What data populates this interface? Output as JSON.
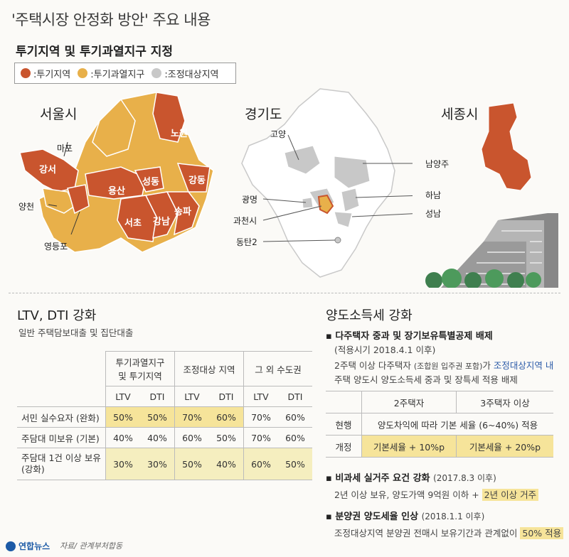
{
  "title": "'주택시장 안정화 방안' 주요 내용",
  "section1": {
    "heading": "투기지역 및 투기과열지구 지정",
    "legend": [
      {
        "label": ":투기지역",
        "color": "#c9552e"
      },
      {
        "label": ":투기과열지구",
        "color": "#e8b04a"
      },
      {
        "label": ":조정대상지역",
        "color": "#c8c8c8"
      }
    ],
    "seoul": {
      "name": "서울시",
      "districts": [
        "마포",
        "노원",
        "강서",
        "성동",
        "강동",
        "용산",
        "양천",
        "송파",
        "강남",
        "서초",
        "영등포"
      ]
    },
    "gyeonggi": {
      "name": "경기도",
      "places": [
        "고양",
        "남양주",
        "하남",
        "광명",
        "성남",
        "과천시",
        "동탄2"
      ]
    },
    "sejong": {
      "name": "세종시"
    }
  },
  "section2": {
    "heading": "LTV, DTI 강화",
    "sub": "일반 주택담보대출 및 집단대출",
    "col_groups": [
      "투기과열지구\n및 투기지역",
      "조정대상 지역",
      "그 외 수도권"
    ],
    "sub_cols": [
      "LTV",
      "DTI",
      "LTV",
      "DTI",
      "LTV",
      "DTI"
    ],
    "rows": [
      {
        "label": "서민 실수요자 (완화)",
        "values": [
          "50%",
          "50%",
          "70%",
          "60%",
          "70%",
          "60%"
        ]
      },
      {
        "label": "주담대 미보유 (기본)",
        "values": [
          "40%",
          "40%",
          "60%",
          "50%",
          "70%",
          "60%"
        ]
      },
      {
        "label": "주담대 1건 이상 보유\n(강화)",
        "values": [
          "30%",
          "30%",
          "50%",
          "40%",
          "60%",
          "50%"
        ]
      }
    ]
  },
  "section3": {
    "heading": "양도소득세 강화",
    "b1": {
      "title": "다주택자 중과 및 장기보유특별공제 배제",
      "date": "(적용시기 2018.4.1 이후)",
      "line1_a": "2주택 이상 다주택자 ",
      "line1_b": "(조합원 입주권 포함)",
      "line1_c": "가 ",
      "line1_d": "조정대상지역 내",
      "line2": "주택 양도시 양도소득세 중과 및 장특세 적용 배제"
    },
    "tax_table": {
      "cols": [
        "2주택자",
        "3주택자 이상"
      ],
      "rows": [
        {
          "label": "현행",
          "merged": "양도차익에 따라 기본 세율 (6~40%) 적용"
        },
        {
          "label": "개정",
          "values": [
            "기본세율 + 10%p",
            "기본세율 + 20%p"
          ]
        }
      ]
    },
    "b2": {
      "title": "비과세 실거주 요건 강화",
      "date": "(2017.8.3 이후)",
      "line_a": "2년 이상 보유, 양도가액 9억원 이하 + ",
      "line_b": "2년 이상 거주"
    },
    "b3": {
      "title": "분양권 양도세율 인상",
      "date": "(2018.1.1 이후)",
      "line_a": "조정대상지역 분양권 전매시 보유기간과 관계없이 ",
      "line_b": "50% 적용"
    }
  },
  "footer": {
    "logo": "연합뉴스",
    "source": "자료/ 관계부처합동"
  }
}
